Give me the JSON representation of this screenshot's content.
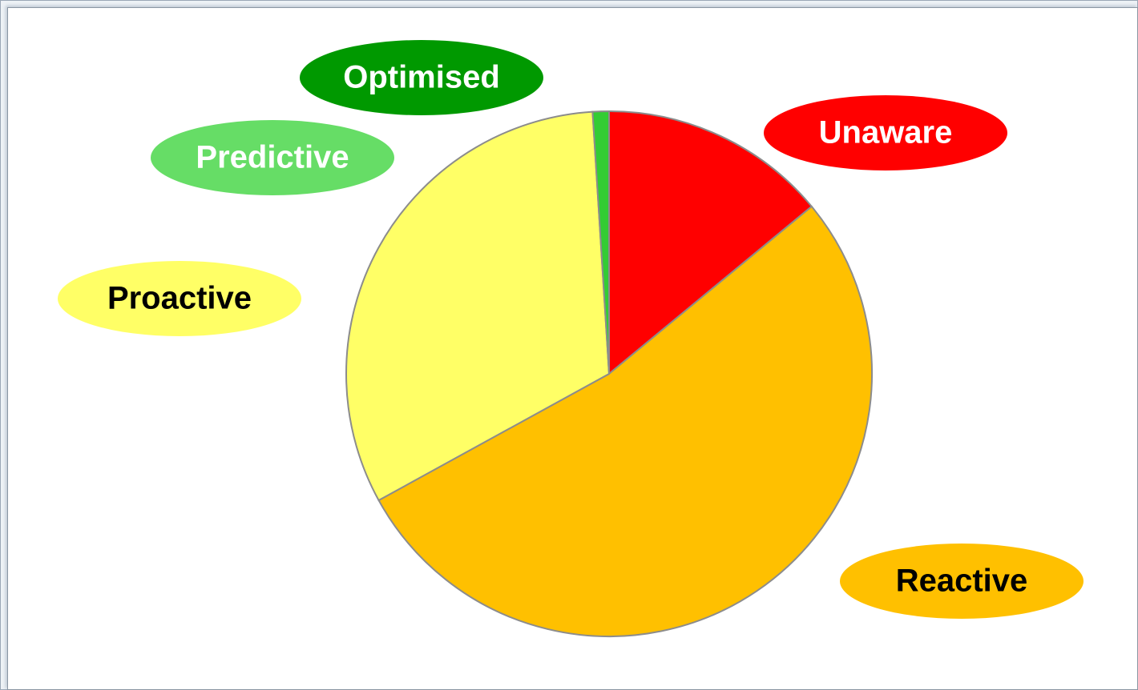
{
  "chart_data": {
    "type": "pie",
    "categories": [
      "Unaware",
      "Reactive",
      "Proactive",
      "Predictive",
      "Optimised"
    ],
    "values": [
      14,
      53,
      32,
      1,
      0
    ],
    "colors": [
      "#ff0000",
      "#ffc000",
      "#ffff66",
      "#33cc33",
      "#009900"
    ],
    "label_colors": [
      "#ff0000",
      "#ffc000",
      "#ffff66",
      "#66dd66",
      "#009900"
    ],
    "label_text_colors": [
      "#ffffff",
      "#000000",
      "#000000",
      "#ffffff",
      "#ffffff"
    ]
  }
}
